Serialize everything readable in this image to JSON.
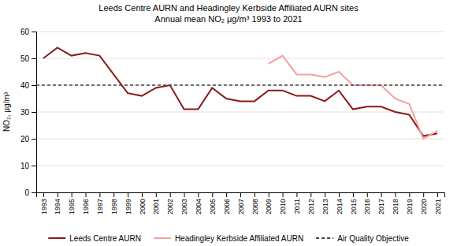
{
  "chart_data": {
    "type": "line",
    "title": "Leeds Centre AURN and Headingley Kerbside Affiliated AURN sites",
    "subtitle": "Annual mean NO₂ μg/m³  1993 to 2021",
    "ylabel": "NO₂, μg/m³",
    "x": [
      1993,
      1994,
      1995,
      1996,
      1997,
      1998,
      1999,
      2000,
      2001,
      2002,
      2003,
      2004,
      2005,
      2006,
      2007,
      2008,
      2009,
      2010,
      2011,
      2012,
      2013,
      2014,
      2015,
      2016,
      2017,
      2018,
      2019,
      2020,
      2021
    ],
    "series": [
      {
        "name": "Leeds Centre AURN",
        "color": "#8B1A1A",
        "line_style": "solid",
        "values": [
          50,
          54,
          51,
          52,
          51,
          44,
          37,
          36,
          39,
          40,
          31,
          31,
          39,
          35,
          34,
          34,
          38,
          38,
          36,
          36,
          34,
          38,
          31,
          32,
          32,
          30,
          29,
          21,
          22
        ]
      },
      {
        "name": "Headingley Kerbside Affiliated AURN",
        "color": "#F4A0A0",
        "line_style": "solid",
        "values": [
          null,
          null,
          null,
          null,
          null,
          null,
          null,
          null,
          null,
          null,
          null,
          null,
          null,
          null,
          null,
          null,
          48,
          51,
          44,
          44,
          43,
          45,
          40,
          40,
          40,
          35,
          33,
          20,
          23
        ]
      },
      {
        "name": "Air Quality Objective",
        "type": "hline",
        "color": "#444444",
        "line_style": "dashed",
        "value": 40
      }
    ],
    "xlim": [
      1992.5,
      2021.5
    ],
    "xticks": [
      1993,
      1994,
      1995,
      1996,
      1997,
      1998,
      1999,
      2000,
      2001,
      2002,
      2003,
      2004,
      2005,
      2006,
      2007,
      2008,
      2009,
      2010,
      2011,
      2012,
      2013,
      2014,
      2015,
      2016,
      2017,
      2018,
      2019,
      2020,
      2021
    ],
    "ylim": [
      0,
      60
    ],
    "yticks": [
      0,
      10,
      20,
      30,
      40,
      50,
      60
    ],
    "grid": true,
    "legend": "bottom"
  }
}
